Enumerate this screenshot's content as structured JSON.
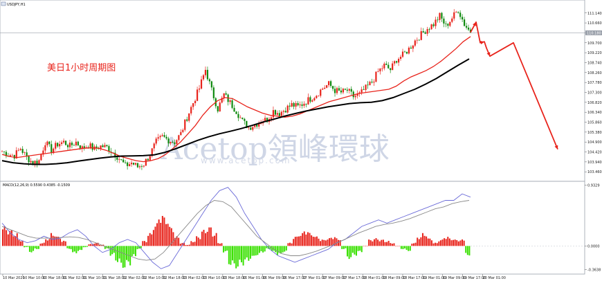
{
  "window": {
    "symbol_title": "USDJPY,H1",
    "icon": "chart-window-icon"
  },
  "annotation": "美日1小时周期图",
  "watermark": {
    "brand": "Acetop領峰環球",
    "url": "www.acetop.com"
  },
  "colors": {
    "bull": "#e8231b",
    "bear": "#0f8a0f",
    "ma_fast": "#e8231b",
    "ma_slow": "#000000",
    "macd_pos": "#e8231b",
    "macd_neg": "#39e000",
    "macd_main": "#6a6ad8",
    "macd_signal": "#888888",
    "forecast": "#e8231b",
    "current_line": "#9aa0aa"
  },
  "chart_data": [
    {
      "type": "candlestick",
      "symbol": "USDJPY",
      "timeframe": "H1",
      "y_ticks": [
        "111.140",
        "110.660",
        "110.180",
        "109.700",
        "109.220",
        "108.740",
        "108.260",
        "107.780",
        "107.300",
        "106.820",
        "106.340",
        "105.860",
        "105.380",
        "104.900",
        "104.420",
        "103.940",
        "103.460"
      ],
      "current_price": "110.180",
      "ylim": [
        103.2,
        111.5
      ],
      "price_path": [
        104.45,
        104.3,
        104.25,
        104.6,
        104.15,
        103.9,
        104.0,
        104.9,
        104.5,
        104.8,
        104.9,
        104.7,
        104.9,
        104.6,
        104.75,
        104.55,
        104.7,
        104.65,
        104.4,
        104.1,
        103.75,
        103.9,
        103.7,
        103.85,
        104.3,
        104.9,
        105.15,
        105.0,
        104.9,
        105.3,
        106.1,
        106.8,
        107.5,
        108.4,
        107.4,
        106.5,
        107.2,
        106.8,
        106.4,
        105.9,
        105.6,
        105.75,
        105.9,
        106.0,
        106.4,
        106.3,
        106.5,
        106.7,
        106.6,
        106.8,
        107.0,
        107.2,
        107.5,
        107.7,
        107.4,
        107.3,
        107.4,
        107.1,
        107.2,
        107.5,
        107.8,
        108.3,
        108.6,
        108.4,
        108.9,
        109.1,
        109.4,
        109.8,
        110.1,
        110.4,
        110.6,
        111.0,
        110.5,
        110.9,
        111.3,
        110.6,
        110.2
      ],
      "ma_fast": [
        104.3,
        104.2,
        104.15,
        104.2,
        104.25,
        104.3,
        104.35,
        104.4,
        104.45,
        104.5,
        104.55,
        104.6,
        104.62,
        104.6,
        104.5,
        104.35,
        104.2,
        104.1,
        104.0,
        103.95,
        104.0,
        104.1,
        104.3,
        104.6,
        104.9,
        105.3,
        105.7,
        106.2,
        106.6,
        106.9,
        107.05,
        107.0,
        106.8,
        106.6,
        106.45,
        106.3,
        106.2,
        106.15,
        106.1,
        106.15,
        106.25,
        106.4,
        106.55,
        106.7,
        106.85,
        106.95,
        107.05,
        107.15,
        107.25,
        107.3,
        107.35,
        107.4,
        107.45,
        107.6,
        107.85,
        108.05,
        108.2,
        108.35,
        108.55,
        108.8,
        109.1,
        109.4,
        109.75,
        110.0
      ],
      "ma_slow": [
        104.0,
        103.9,
        103.85,
        103.82,
        103.82,
        103.85,
        103.9,
        103.98,
        104.05,
        104.12,
        104.18,
        104.22,
        104.23,
        104.24,
        104.28,
        104.4,
        104.58,
        104.78,
        104.98,
        105.15,
        105.3,
        105.42,
        105.55,
        105.7,
        105.86,
        106.0,
        106.15,
        106.28,
        106.4,
        106.5,
        106.6,
        106.68,
        106.76,
        106.8,
        106.82,
        106.9,
        107.05,
        107.25,
        107.45,
        107.7,
        107.98,
        108.3,
        108.62,
        108.92
      ],
      "forecast_path": [
        110.2,
        110.7,
        109.7,
        109.75,
        109.45,
        109.05,
        109.7,
        104.55
      ]
    },
    {
      "type": "bar",
      "name": "MACD Main,Signal",
      "indicator_header": "MACD(12,26,9) 0.5590 0.4385 -0.1509",
      "params": [
        12,
        26,
        9
      ],
      "values_printed": [
        "0.5590",
        "0.4385",
        "-0.1509"
      ],
      "y_ticks": [
        "0.9329",
        "0.0000",
        "-0.3638"
      ],
      "ylim": [
        -0.4,
        0.95
      ],
      "histogram": [
        0.3,
        0.25,
        0.2,
        0.1,
        -0.02,
        -0.1,
        -0.05,
        0.05,
        0.12,
        0.2,
        0.15,
        0.08,
        -0.05,
        -0.12,
        -0.08,
        -0.02,
        0.03,
        0.05,
        0.02,
        -0.05,
        -0.15,
        -0.25,
        -0.35,
        -0.3,
        -0.18,
        -0.05,
        0.08,
        0.2,
        0.35,
        0.5,
        0.45,
        0.3,
        0.15,
        0.05,
        0.02,
        0.08,
        0.15,
        0.25,
        0.3,
        0.2,
        0.05,
        -0.1,
        -0.3,
        -0.35,
        -0.3,
        -0.25,
        -0.2,
        -0.15,
        -0.1,
        -0.05,
        -0.1,
        -0.15,
        -0.1,
        0.05,
        0.15,
        0.2,
        0.25,
        0.2,
        0.15,
        0.1,
        0.12,
        0.15,
        0.12,
        -0.05,
        -0.2,
        -0.15,
        -0.1,
        0.0,
        0.1,
        0.12,
        0.1,
        0.08,
        0.05,
        0.0,
        -0.05,
        -0.08,
        0.05,
        0.15,
        0.2,
        0.12,
        0.05,
        0.1,
        0.15,
        0.12,
        0.1,
        0.1,
        -0.15
      ],
      "main_line": [
        0.35,
        0.2,
        0.1,
        0.05,
        0.08,
        0.15,
        0.1,
        0.12,
        0.2,
        0.25,
        0.15,
        0.0,
        -0.1,
        -0.05,
        0.05,
        0.1,
        0.05,
        -0.1,
        -0.25,
        -0.35,
        -0.3,
        -0.1,
        0.1,
        0.3,
        0.5,
        0.7,
        0.85,
        0.9,
        0.75,
        0.5,
        0.3,
        0.1,
        -0.05,
        -0.15,
        -0.2,
        -0.25,
        -0.2,
        -0.15,
        -0.1,
        -0.05,
        0.05,
        0.1,
        0.2,
        0.3,
        0.35,
        0.4,
        0.35,
        0.4,
        0.45,
        0.5,
        0.55,
        0.6,
        0.65,
        0.7,
        0.7,
        0.8,
        0.75
      ],
      "signal_line": [
        0.3,
        0.25,
        0.2,
        0.15,
        0.12,
        0.12,
        0.12,
        0.13,
        0.14,
        0.13,
        0.1,
        0.05,
        0.0,
        -0.05,
        -0.1,
        -0.15,
        -0.2,
        -0.22,
        -0.2,
        -0.1,
        0.05,
        0.2,
        0.35,
        0.5,
        0.62,
        0.7,
        0.68,
        0.6,
        0.45,
        0.3,
        0.15,
        0.05,
        -0.05,
        -0.12,
        -0.15,
        -0.15,
        -0.12,
        -0.08,
        -0.03,
        0.02,
        0.08,
        0.14,
        0.2,
        0.25,
        0.3,
        0.33,
        0.35,
        0.38,
        0.42,
        0.47,
        0.52,
        0.57,
        0.6,
        0.65,
        0.68,
        0.7
      ]
    }
  ],
  "x_ticks": [
    "10 Mar 2020",
    "10 Mar 10:00",
    "10 Mar 18:00",
    "11 Mar 02:00",
    "11 Mar 10:00",
    "11 Mar 18:00",
    "12 Mar 02:00",
    "12 Mar 10:00",
    "12 Mar 18:00",
    "13 Mar 02:00",
    "13 Mar 10:00",
    "13 Mar 18:00",
    "16 Mar 01:00",
    "16 Mar 09:00",
    "16 Mar 17:00",
    "17 Mar 01:00",
    "17 Mar 09:00",
    "17 Mar 17:00",
    "18 Mar 01:00",
    "18 Mar 09:00",
    "18 Mar 17:00",
    "19 Mar 01:00",
    "19 Mar 09:00",
    "19 Mar 17:00",
    "20 Mar 01:00"
  ]
}
